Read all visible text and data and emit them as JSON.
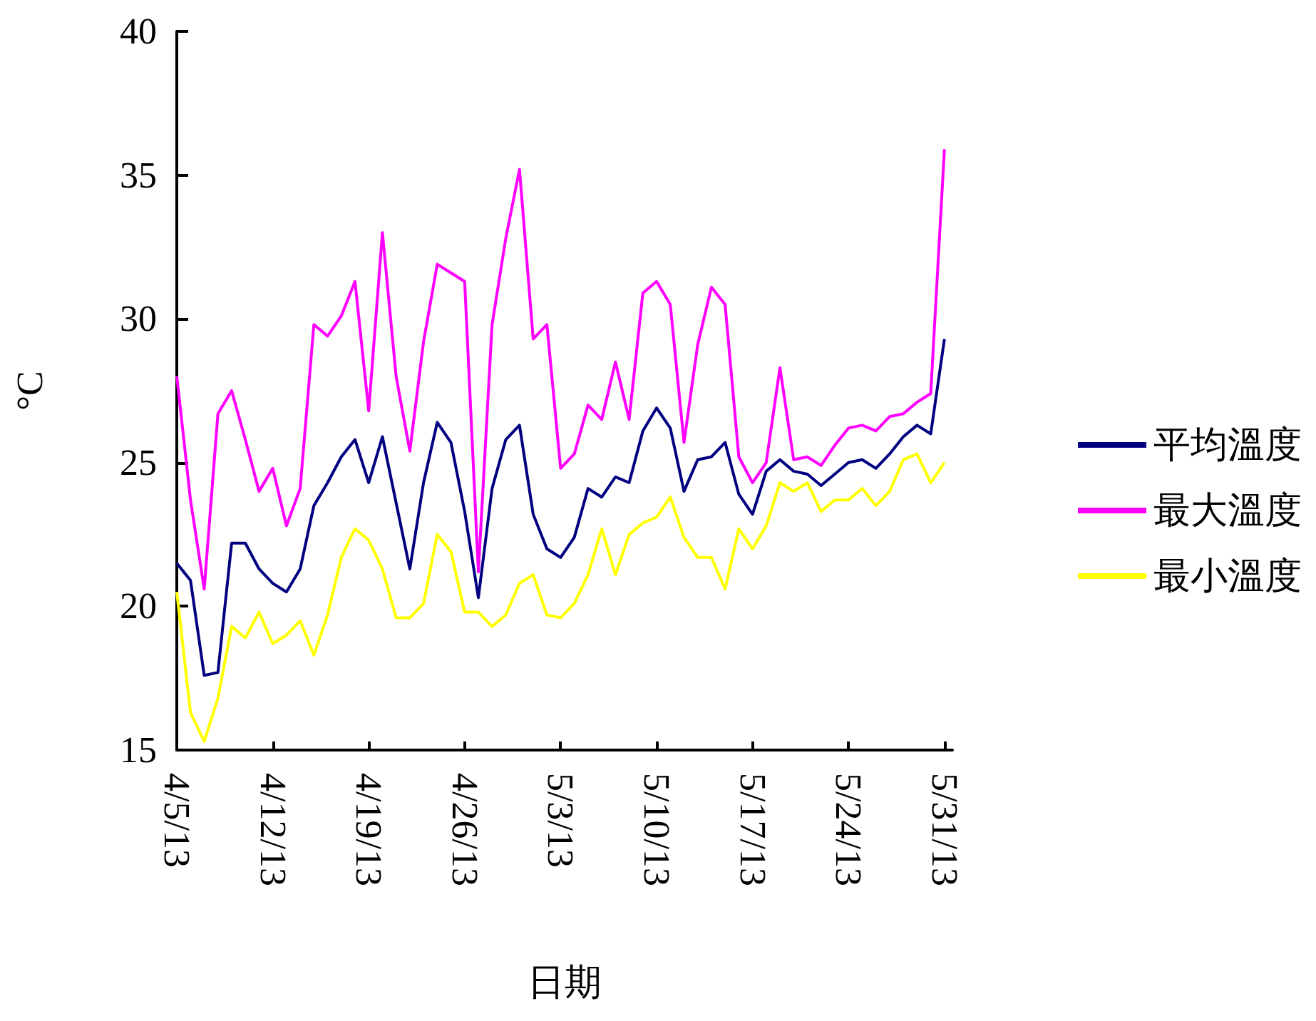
{
  "chart_data": {
    "type": "line",
    "xlabel": "日期",
    "ylabel": "°C",
    "x": [
      "--04-05",
      "--04-06",
      "--04-07",
      "--04-08",
      "--04-09",
      "--04-10",
      "--04-11",
      "--04-12",
      "--04-13",
      "--04-14",
      "--04-15",
      "--04-16",
      "--04-17",
      "--04-18",
      "--04-19",
      "--04-20",
      "--04-21",
      "--04-22",
      "--04-23",
      "--04-24",
      "--04-25",
      "--04-26",
      "--04-27",
      "--04-28",
      "--04-29",
      "--04-30",
      "--05-01",
      "--05-02",
      "--05-03",
      "--05-04",
      "--05-05",
      "--05-06",
      "--05-07",
      "--05-08",
      "--05-09",
      "--05-10",
      "--05-11",
      "--05-12",
      "--05-13",
      "--05-14",
      "--05-15",
      "--05-16",
      "--05-17",
      "--05-18",
      "--05-19",
      "--05-20",
      "--05-21",
      "--05-22",
      "--05-23",
      "--05-24",
      "--05-25",
      "--05-26",
      "--05-27",
      "--05-28",
      "--05-29",
      "--05-30",
      "--05-31"
    ],
    "series": [
      {
        "name": "平均溫度",
        "color": "#000080",
        "values": [
          21.5,
          20.9,
          17.6,
          17.7,
          22.2,
          22.2,
          21.3,
          20.8,
          20.5,
          21.3,
          23.5,
          24.3,
          25.2,
          25.8,
          24.3,
          25.9,
          23.6,
          21.3,
          24.3,
          26.4,
          25.7,
          23.3,
          20.3,
          24.1,
          25.8,
          26.3,
          23.2,
          22.0,
          21.7,
          22.4,
          24.1,
          23.8,
          24.5,
          24.3,
          26.1,
          26.9,
          26.2,
          24.0,
          25.1,
          25.2,
          25.7,
          23.9,
          23.2,
          24.7,
          25.1,
          24.7,
          24.6,
          24.2,
          24.6,
          25.0,
          25.1,
          24.8,
          25.3,
          25.9,
          26.3,
          26.0,
          29.3
        ]
      },
      {
        "name": "最大溫度",
        "color": "#ff00ff",
        "values": [
          28.0,
          23.7,
          20.6,
          26.7,
          27.5,
          25.8,
          24.0,
          24.8,
          22.8,
          24.1,
          29.8,
          29.4,
          30.1,
          31.3,
          26.8,
          33.0,
          28.0,
          25.4,
          29.2,
          31.9,
          31.6,
          31.3,
          21.2,
          29.8,
          32.8,
          35.2,
          29.3,
          29.8,
          24.8,
          25.3,
          27.0,
          26.5,
          28.5,
          26.5,
          30.9,
          31.3,
          30.5,
          25.7,
          29.1,
          31.1,
          30.5,
          25.2,
          24.3,
          25.0,
          28.3,
          25.1,
          25.2,
          24.9,
          25.6,
          26.2,
          26.3,
          26.1,
          26.6,
          26.7,
          27.1,
          27.4,
          35.9
        ]
      },
      {
        "name": "最小溫度",
        "color": "#ffff00",
        "values": [
          20.5,
          16.3,
          15.3,
          16.8,
          19.3,
          18.9,
          19.8,
          18.7,
          19.0,
          19.5,
          18.3,
          19.7,
          21.7,
          22.7,
          22.3,
          21.3,
          19.6,
          19.6,
          20.1,
          22.5,
          21.9,
          19.8,
          19.8,
          19.3,
          19.7,
          20.8,
          21.1,
          19.7,
          19.6,
          20.1,
          21.1,
          22.7,
          21.1,
          22.5,
          22.9,
          23.1,
          23.8,
          22.4,
          21.7,
          21.7,
          20.6,
          22.7,
          22.0,
          22.8,
          24.3,
          24.0,
          24.3,
          23.3,
          23.7,
          23.7,
          24.1,
          23.5,
          24.0,
          25.1,
          25.3,
          24.3,
          25.0
        ]
      }
    ],
    "xlim": [
      "--04-05",
      "--05-31T14:00"
    ],
    "xticks": [
      {
        "value": "--04-05",
        "label": "4/5/13"
      },
      {
        "value": "--04-12",
        "label": "4/12/13"
      },
      {
        "value": "--04-19",
        "label": "4/19/13"
      },
      {
        "value": "--04-26",
        "label": "4/26/13"
      },
      {
        "value": "--05-03",
        "label": "5/3/13"
      },
      {
        "value": "--05-10",
        "label": "5/10/13"
      },
      {
        "value": "--05-17",
        "label": "5/17/13"
      },
      {
        "value": "--05-24",
        "label": "5/24/13"
      },
      {
        "value": "--05-31",
        "label": "5/31/13"
      }
    ],
    "ylim": [
      15,
      40
    ],
    "yticks": [
      15,
      20,
      25,
      30,
      35,
      40
    ],
    "grid": false,
    "legend": "right",
    "marker": "none",
    "line_style": "solid"
  }
}
